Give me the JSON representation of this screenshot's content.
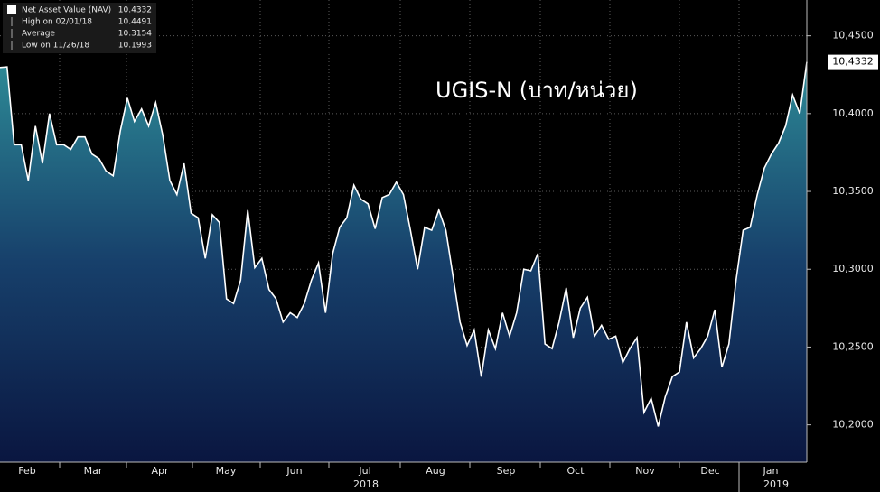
{
  "chart_data": {
    "type": "area",
    "title": "UGIS-N (บาท/หน่วย)",
    "series": [
      {
        "name": "Net Asset Value (NAV)",
        "color": "#ffffff",
        "values": [
          10.4296,
          10.43,
          10.38,
          10.38,
          10.357,
          10.392,
          10.368,
          10.4,
          10.38,
          10.38,
          10.377,
          10.385,
          10.385,
          10.374,
          10.371,
          10.363,
          10.36,
          10.389,
          10.41,
          10.395,
          10.403,
          10.392,
          10.407,
          10.386,
          10.357,
          10.348,
          10.368,
          10.336,
          10.333,
          10.307,
          10.335,
          10.33,
          10.281,
          10.278,
          10.293,
          10.338,
          10.301,
          10.307,
          10.287,
          10.281,
          10.266,
          10.272,
          10.269,
          10.278,
          10.293,
          10.304,
          10.272,
          10.31,
          10.327,
          10.333,
          10.354,
          10.345,
          10.342,
          10.326,
          10.346,
          10.348,
          10.356,
          10.348,
          10.325,
          10.3,
          10.327,
          10.325,
          10.338,
          10.325,
          10.296,
          10.266,
          10.251,
          10.261,
          10.231,
          10.261,
          10.249,
          10.272,
          10.257,
          10.272,
          10.3,
          10.299,
          10.31,
          10.252,
          10.249,
          10.266,
          10.288,
          10.256,
          10.275,
          10.282,
          10.257,
          10.264,
          10.255,
          10.257,
          10.24,
          10.249,
          10.256,
          10.208,
          10.217,
          10.199,
          10.218,
          10.231,
          10.234,
          10.266,
          10.243,
          10.249,
          10.257,
          10.274,
          10.237,
          10.252,
          10.293,
          10.325,
          10.327,
          10.348,
          10.365,
          10.374,
          10.381,
          10.392,
          10.412,
          10.4,
          10.4332
        ]
      }
    ],
    "legend": [
      {
        "label": "Net Asset Value (NAV)",
        "value": 10.4332
      },
      {
        "label": "High on 02/01/18",
        "value": 10.4491
      },
      {
        "label": "Average",
        "value": 10.3154
      },
      {
        "label": "Low on 11/26/18",
        "value": 10.1993
      }
    ],
    "current_value": {
      "value": 10.4332,
      "label": "10,4332"
    },
    "months": [
      "Feb",
      "Mar",
      "Apr",
      "May",
      "Jun",
      "Jul",
      "Aug",
      "Sep",
      "Oct",
      "Nov",
      "Dec",
      "Jan"
    ],
    "years": [
      "2018",
      "2019"
    ],
    "ylim": [
      10.176,
      10.473
    ],
    "yticks": [
      {
        "value": 10.2,
        "label": "10,2000"
      },
      {
        "value": 10.25,
        "label": "10,2500"
      },
      {
        "value": 10.3,
        "label": "10,3000"
      },
      {
        "value": 10.35,
        "label": "10,3500"
      },
      {
        "value": 10.4,
        "label": "10,4000"
      },
      {
        "value": 10.45,
        "label": "10,4500"
      }
    ],
    "grid": true
  }
}
